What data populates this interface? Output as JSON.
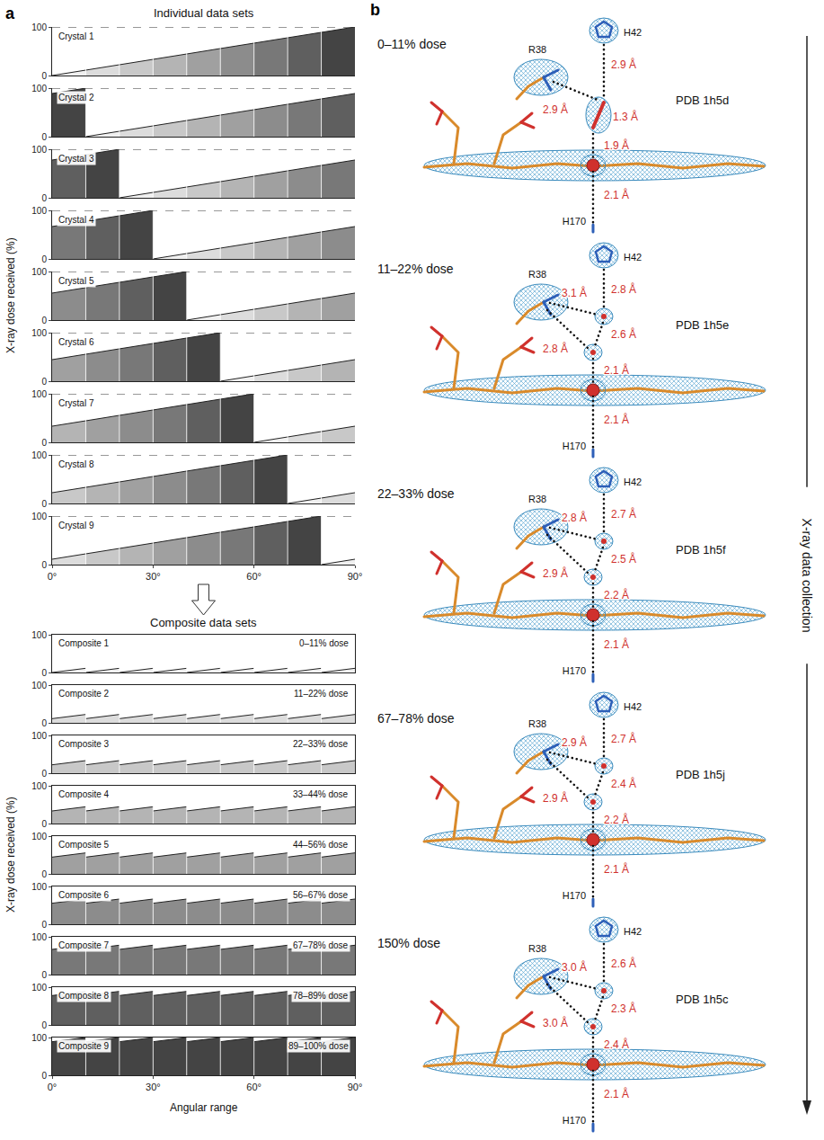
{
  "chart_data": [
    {
      "type": "area",
      "panel_label": "a",
      "title": "Individual data sets",
      "y_label": "X-ray dose received (%)",
      "xlim": [
        0,
        90
      ],
      "xticks": [
        {
          "value": 0,
          "label": "0°"
        },
        {
          "value": 30,
          "label": "30°"
        },
        {
          "value": 60,
          "label": "60°"
        },
        {
          "value": 90,
          "label": "90°"
        }
      ],
      "ylim": [
        0,
        100
      ],
      "yticks": [
        0,
        100
      ],
      "angles": [
        0,
        10,
        20,
        30,
        40,
        50,
        60,
        70,
        80,
        90
      ],
      "panels": [
        {
          "name": "Crystal 1",
          "dose_start": [
            0,
            11.1,
            22.2,
            33.3,
            44.4,
            55.6,
            66.7,
            77.8,
            88.9
          ],
          "dose_end": [
            11.1,
            22.2,
            33.3,
            44.4,
            55.6,
            66.7,
            77.8,
            88.9,
            100
          ],
          "colors": [
            "#f0f0f0",
            "#dcdcdc",
            "#c8c8c8",
            "#b4b4b4",
            "#a0a0a0",
            "#8c8c8c",
            "#787878",
            "#5f5f5f",
            "#444444"
          ]
        },
        {
          "name": "Crystal 2",
          "dose_start": [
            88.9,
            0,
            11.1,
            22.2,
            33.3,
            44.4,
            55.6,
            66.7,
            77.8
          ],
          "dose_end": [
            100,
            11.1,
            22.2,
            33.3,
            44.4,
            55.6,
            66.7,
            77.8,
            88.9
          ],
          "colors": [
            "#444444",
            "#f0f0f0",
            "#dcdcdc",
            "#c8c8c8",
            "#b4b4b4",
            "#a0a0a0",
            "#8c8c8c",
            "#787878",
            "#5f5f5f"
          ]
        },
        {
          "name": "Crystal 3",
          "dose_start": [
            77.8,
            88.9,
            0,
            11.1,
            22.2,
            33.3,
            44.4,
            55.6,
            66.7
          ],
          "dose_end": [
            88.9,
            100,
            11.1,
            22.2,
            33.3,
            44.4,
            55.6,
            66.7,
            77.8
          ],
          "colors": [
            "#5f5f5f",
            "#444444",
            "#f0f0f0",
            "#dcdcdc",
            "#c8c8c8",
            "#b4b4b4",
            "#a0a0a0",
            "#8c8c8c",
            "#787878"
          ]
        },
        {
          "name": "Crystal 4",
          "dose_start": [
            66.7,
            77.8,
            88.9,
            0,
            11.1,
            22.2,
            33.3,
            44.4,
            55.6
          ],
          "dose_end": [
            77.8,
            88.9,
            100,
            11.1,
            22.2,
            33.3,
            44.4,
            55.6,
            66.7
          ],
          "colors": [
            "#787878",
            "#5f5f5f",
            "#444444",
            "#f0f0f0",
            "#dcdcdc",
            "#c8c8c8",
            "#b4b4b4",
            "#a0a0a0",
            "#8c8c8c"
          ]
        },
        {
          "name": "Crystal 5",
          "dose_start": [
            55.6,
            66.7,
            77.8,
            88.9,
            0,
            11.1,
            22.2,
            33.3,
            44.4
          ],
          "dose_end": [
            66.7,
            77.8,
            88.9,
            100,
            11.1,
            22.2,
            33.3,
            44.4,
            55.6
          ],
          "colors": [
            "#8c8c8c",
            "#787878",
            "#5f5f5f",
            "#444444",
            "#f0f0f0",
            "#dcdcdc",
            "#c8c8c8",
            "#b4b4b4",
            "#a0a0a0"
          ]
        },
        {
          "name": "Crystal 6",
          "dose_start": [
            44.4,
            55.6,
            66.7,
            77.8,
            88.9,
            0,
            11.1,
            22.2,
            33.3
          ],
          "dose_end": [
            55.6,
            66.7,
            77.8,
            88.9,
            100,
            11.1,
            22.2,
            33.3,
            44.4
          ],
          "colors": [
            "#a0a0a0",
            "#8c8c8c",
            "#787878",
            "#5f5f5f",
            "#444444",
            "#f0f0f0",
            "#dcdcdc",
            "#c8c8c8",
            "#b4b4b4"
          ]
        },
        {
          "name": "Crystal 7",
          "dose_start": [
            33.3,
            44.4,
            55.6,
            66.7,
            77.8,
            88.9,
            0,
            11.1,
            22.2
          ],
          "dose_end": [
            44.4,
            55.6,
            66.7,
            77.8,
            88.9,
            100,
            11.1,
            22.2,
            33.3
          ],
          "colors": [
            "#b4b4b4",
            "#a0a0a0",
            "#8c8c8c",
            "#787878",
            "#5f5f5f",
            "#444444",
            "#f0f0f0",
            "#dcdcdc",
            "#c8c8c8"
          ]
        },
        {
          "name": "Crystal 8",
          "dose_start": [
            22.2,
            33.3,
            44.4,
            55.6,
            66.7,
            77.8,
            88.9,
            0,
            11.1
          ],
          "dose_end": [
            33.3,
            44.4,
            55.6,
            66.7,
            77.8,
            88.9,
            100,
            11.1,
            22.2
          ],
          "colors": [
            "#c8c8c8",
            "#b4b4b4",
            "#a0a0a0",
            "#8c8c8c",
            "#787878",
            "#5f5f5f",
            "#444444",
            "#f0f0f0",
            "#dcdcdc"
          ]
        },
        {
          "name": "Crystal 9",
          "dose_start": [
            11.1,
            22.2,
            33.3,
            44.4,
            55.6,
            66.7,
            77.8,
            88.9,
            0
          ],
          "dose_end": [
            22.2,
            33.3,
            44.4,
            55.6,
            66.7,
            77.8,
            88.9,
            100,
            11.1
          ],
          "colors": [
            "#dcdcdc",
            "#c8c8c8",
            "#b4b4b4",
            "#a0a0a0",
            "#8c8c8c",
            "#787878",
            "#5f5f5f",
            "#444444",
            "#f0f0f0"
          ]
        }
      ]
    },
    {
      "type": "area",
      "title": "Composite data sets",
      "y_label": "X-ray dose received (%)",
      "x_label": "Angular range",
      "xlim": [
        0,
        90
      ],
      "xticks": [
        {
          "value": 0,
          "label": "0°"
        },
        {
          "value": 30,
          "label": "30°"
        },
        {
          "value": 60,
          "label": "60°"
        },
        {
          "value": 90,
          "label": "90°"
        }
      ],
      "ylim": [
        0,
        100
      ],
      "yticks": [
        0,
        100
      ],
      "angles": [
        0,
        10,
        20,
        30,
        40,
        50,
        60,
        70,
        80,
        90
      ],
      "panels": [
        {
          "name": "Composite 1",
          "subtitle": "0–11% dose",
          "dose_start": [
            0,
            0,
            0,
            0,
            0,
            0,
            0,
            0,
            0
          ],
          "dose_end": [
            11.1,
            11.1,
            11.1,
            11.1,
            11.1,
            11.1,
            11.1,
            11.1,
            11.1
          ],
          "colors": [
            "#f0f0f0",
            "#f0f0f0",
            "#f0f0f0",
            "#f0f0f0",
            "#f0f0f0",
            "#f0f0f0",
            "#f0f0f0",
            "#f0f0f0",
            "#f0f0f0"
          ]
        },
        {
          "name": "Composite 2",
          "subtitle": "11–22% dose",
          "dose_start": [
            11.1,
            11.1,
            11.1,
            11.1,
            11.1,
            11.1,
            11.1,
            11.1,
            11.1
          ],
          "dose_end": [
            22.2,
            22.2,
            22.2,
            22.2,
            22.2,
            22.2,
            22.2,
            22.2,
            22.2
          ],
          "colors": [
            "#dcdcdc",
            "#dcdcdc",
            "#dcdcdc",
            "#dcdcdc",
            "#dcdcdc",
            "#dcdcdc",
            "#dcdcdc",
            "#dcdcdc",
            "#dcdcdc"
          ]
        },
        {
          "name": "Composite 3",
          "subtitle": "22–33% dose",
          "dose_start": [
            22.2,
            22.2,
            22.2,
            22.2,
            22.2,
            22.2,
            22.2,
            22.2,
            22.2
          ],
          "dose_end": [
            33.3,
            33.3,
            33.3,
            33.3,
            33.3,
            33.3,
            33.3,
            33.3,
            33.3
          ],
          "colors": [
            "#c8c8c8",
            "#c8c8c8",
            "#c8c8c8",
            "#c8c8c8",
            "#c8c8c8",
            "#c8c8c8",
            "#c8c8c8",
            "#c8c8c8",
            "#c8c8c8"
          ]
        },
        {
          "name": "Composite 4",
          "subtitle": "33–44% dose",
          "dose_start": [
            33.3,
            33.3,
            33.3,
            33.3,
            33.3,
            33.3,
            33.3,
            33.3,
            33.3
          ],
          "dose_end": [
            44.4,
            44.4,
            44.4,
            44.4,
            44.4,
            44.4,
            44.4,
            44.4,
            44.4
          ],
          "colors": [
            "#b4b4b4",
            "#b4b4b4",
            "#b4b4b4",
            "#b4b4b4",
            "#b4b4b4",
            "#b4b4b4",
            "#b4b4b4",
            "#b4b4b4",
            "#b4b4b4"
          ]
        },
        {
          "name": "Composite 5",
          "subtitle": "44–56% dose",
          "dose_start": [
            44.4,
            44.4,
            44.4,
            44.4,
            44.4,
            44.4,
            44.4,
            44.4,
            44.4
          ],
          "dose_end": [
            55.6,
            55.6,
            55.6,
            55.6,
            55.6,
            55.6,
            55.6,
            55.6,
            55.6
          ],
          "colors": [
            "#a0a0a0",
            "#a0a0a0",
            "#a0a0a0",
            "#a0a0a0",
            "#a0a0a0",
            "#a0a0a0",
            "#a0a0a0",
            "#a0a0a0",
            "#a0a0a0"
          ]
        },
        {
          "name": "Composite 6",
          "subtitle": "56–67% dose",
          "dose_start": [
            55.6,
            55.6,
            55.6,
            55.6,
            55.6,
            55.6,
            55.6,
            55.6,
            55.6
          ],
          "dose_end": [
            66.7,
            66.7,
            66.7,
            66.7,
            66.7,
            66.7,
            66.7,
            66.7,
            66.7
          ],
          "colors": [
            "#8c8c8c",
            "#8c8c8c",
            "#8c8c8c",
            "#8c8c8c",
            "#8c8c8c",
            "#8c8c8c",
            "#8c8c8c",
            "#8c8c8c",
            "#8c8c8c"
          ]
        },
        {
          "name": "Composite 7",
          "subtitle": "67–78% dose",
          "dose_start": [
            66.7,
            66.7,
            66.7,
            66.7,
            66.7,
            66.7,
            66.7,
            66.7,
            66.7
          ],
          "dose_end": [
            77.8,
            77.8,
            77.8,
            77.8,
            77.8,
            77.8,
            77.8,
            77.8,
            77.8
          ],
          "colors": [
            "#787878",
            "#787878",
            "#787878",
            "#787878",
            "#787878",
            "#787878",
            "#787878",
            "#787878",
            "#787878"
          ]
        },
        {
          "name": "Composite 8",
          "subtitle": "78–89% dose",
          "dose_start": [
            77.8,
            77.8,
            77.8,
            77.8,
            77.8,
            77.8,
            77.8,
            77.8,
            77.8
          ],
          "dose_end": [
            88.9,
            88.9,
            88.9,
            88.9,
            88.9,
            88.9,
            88.9,
            88.9,
            88.9
          ],
          "colors": [
            "#5f5f5f",
            "#5f5f5f",
            "#5f5f5f",
            "#5f5f5f",
            "#5f5f5f",
            "#5f5f5f",
            "#5f5f5f",
            "#5f5f5f",
            "#5f5f5f"
          ]
        },
        {
          "name": "Composite 9",
          "subtitle": "89–100% dose",
          "dose_start": [
            88.9,
            88.9,
            88.9,
            88.9,
            88.9,
            88.9,
            88.9,
            88.9,
            88.9
          ],
          "dose_end": [
            100,
            100,
            100,
            100,
            100,
            100,
            100,
            100,
            100
          ],
          "colors": [
            "#444444",
            "#444444",
            "#444444",
            "#444444",
            "#444444",
            "#444444",
            "#444444",
            "#444444",
            "#444444"
          ]
        }
      ]
    }
  ],
  "diagram": {
    "panel_label": "b",
    "axis_label": "X-ray data collection",
    "structures": [
      {
        "dose": "0–11% dose",
        "pdb": "PDB 1h5d",
        "residues": [
          "R38",
          "H42",
          "H170"
        ],
        "distances": [
          "2.9 Å",
          "2.9 Å",
          "1.3 Å",
          "1.9 Å",
          "2.1 Å"
        ]
      },
      {
        "dose": "11–22% dose",
        "pdb": "PDB 1h5e",
        "residues": [
          "R38",
          "H42",
          "H170"
        ],
        "distances": [
          "3.1 Å",
          "2.8 Å",
          "2.8 Å",
          "2.6 Å",
          "2.1 Å",
          "2.1 Å"
        ]
      },
      {
        "dose": "22–33% dose",
        "pdb": "PDB 1h5f",
        "residues": [
          "R38",
          "H42",
          "H170"
        ],
        "distances": [
          "2.8 Å",
          "2.7 Å",
          "2.9 Å",
          "2.5 Å",
          "2.2 Å",
          "2.1 Å"
        ]
      },
      {
        "dose": "67–78% dose",
        "pdb": "PDB 1h5j",
        "residues": [
          "R38",
          "H42",
          "H170"
        ],
        "distances": [
          "2.9 Å",
          "2.7 Å",
          "2.9 Å",
          "2.4 Å",
          "2.2 Å",
          "2.1 Å"
        ]
      },
      {
        "dose": "150% dose",
        "pdb": "PDB 1h5c",
        "residues": [
          "R38",
          "H42",
          "H170"
        ],
        "distances": [
          "3.0 Å",
          "2.6 Å",
          "3.0 Å",
          "2.3 Å",
          "2.4 Å",
          "2.1 Å"
        ]
      }
    ]
  }
}
